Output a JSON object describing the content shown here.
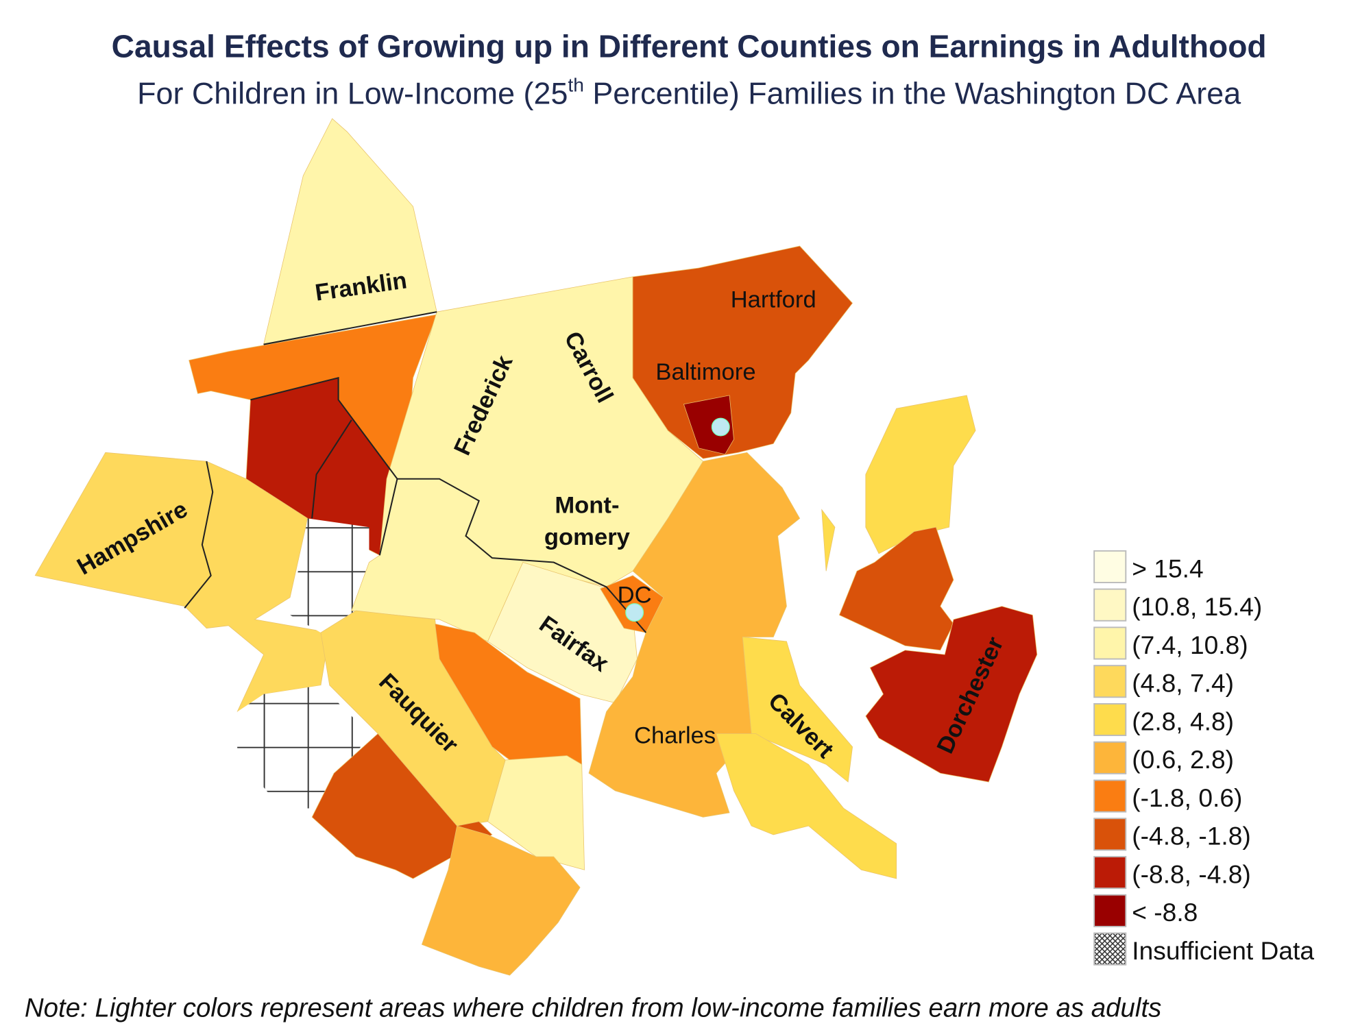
{
  "title": "Causal Effects of Growing up in Different Counties on Earnings in Adulthood",
  "subtitle": {
    "before": "For Children in Low-Income (25",
    "sup": "th",
    "after": " Percentile) Families in the Washington DC Area"
  },
  "note": "Note: Lighter colors represent areas where children from low-income families earn more as adults",
  "chart_data": {
    "type": "choropleth",
    "legend": {
      "placement": "bottom-right",
      "bins": [
        {
          "label": "> 15.4",
          "color": "#fffde3"
        },
        {
          "label": "(10.8, 15.4)",
          "color": "#fff8c4"
        },
        {
          "label": "(7.4, 10.8)",
          "color": "#fff5aa"
        },
        {
          "label": "(4.8, 7.4)",
          "color": "#fed95c"
        },
        {
          "label": "(2.8, 4.8)",
          "color": "#fedc4c"
        },
        {
          "label": "(0.6, 2.8)",
          "color": "#fdb53a"
        },
        {
          "label": "(-1.8, 0.6)",
          "color": "#fa7d12"
        },
        {
          "label": "(-4.8, -1.8)",
          "color": "#d9520a"
        },
        {
          "label": "(-8.8, -4.8)",
          "color": "#bb1b06"
        },
        {
          "label": "< -8.8",
          "color": "#990000"
        },
        {
          "label": "Insufficient Data",
          "color": "hatch"
        }
      ]
    },
    "regions": [
      {
        "id": "franklin",
        "label": "Franklin",
        "bin": 2
      },
      {
        "id": "washington",
        "bin": 6
      },
      {
        "id": "allegany-area",
        "bin": 8
      },
      {
        "id": "hampshire",
        "label": "Hampshire",
        "bin": 3
      },
      {
        "id": "insufficient",
        "bin": 10
      },
      {
        "id": "frederick-carroll-montgomery",
        "labels": [
          "Frederick",
          "Carroll",
          "Mont-",
          "gomery"
        ],
        "bin": 2
      },
      {
        "id": "fairfax",
        "label": "Fairfax",
        "bin": 1
      },
      {
        "id": "dc",
        "label": "DC",
        "bin": 6
      },
      {
        "id": "baltimore-hartford",
        "labels": [
          "Baltimore",
          "Hartford"
        ],
        "bin": 7
      },
      {
        "id": "baltimore-city",
        "bin": 9
      },
      {
        "id": "prince-georges-charles",
        "label": "Charles",
        "bin": 5
      },
      {
        "id": "calvert",
        "label": "Calvert",
        "bin": 4
      },
      {
        "id": "st-marys",
        "bin": 4
      },
      {
        "id": "fauquier",
        "label": "Fauquier",
        "bin": 3
      },
      {
        "id": "prince-william",
        "bin": 6
      },
      {
        "id": "culpeper",
        "bin": 7
      },
      {
        "id": "stafford",
        "bin": 2
      },
      {
        "id": "spotsylvania",
        "bin": 5
      },
      {
        "id": "kent",
        "bin": 4
      },
      {
        "id": "queen-annes",
        "bin": 7
      },
      {
        "id": "dorchester",
        "label": "Dorchester",
        "bin": 8
      }
    ],
    "markers": [
      {
        "near": "Baltimore",
        "color": "#bfe9f2"
      },
      {
        "near": "DC",
        "color": "#bfe9f2"
      }
    ]
  }
}
